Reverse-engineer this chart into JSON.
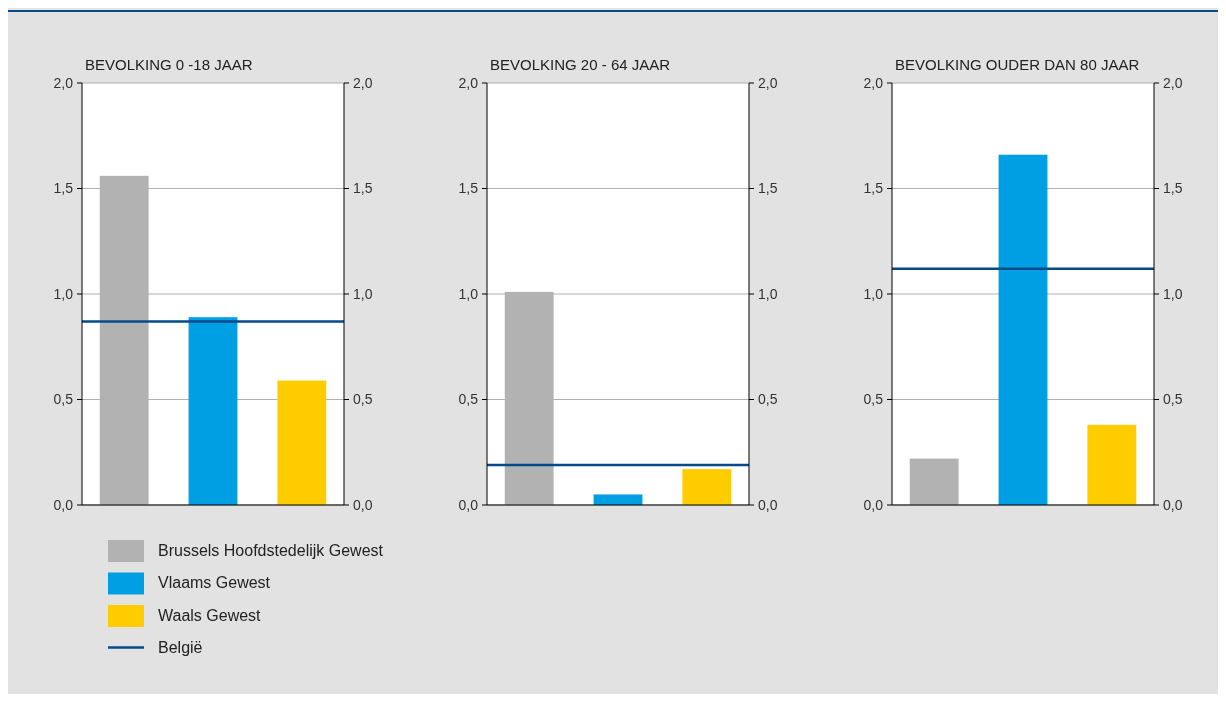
{
  "chart_data": [
    {
      "type": "bar",
      "title": "BEVOLKING 0 -18 JAAR",
      "categories": [
        null,
        null,
        null
      ],
      "series": [
        {
          "name": "Brussels Hoofdstedelijk Gewest",
          "color": "#b2b2b2",
          "values": [
            1.56,
            null,
            null
          ]
        },
        {
          "name": "Vlaams Gewest",
          "color": "#009fe3",
          "values": [
            null,
            0.89,
            null
          ]
        },
        {
          "name": "Waals Gewest",
          "color": "#ffcc00",
          "values": [
            null,
            null,
            0.59
          ]
        }
      ],
      "ref_lines": [
        {
          "axis": "y",
          "value": 0.87,
          "label": "België",
          "color": "#034a8b"
        }
      ],
      "ylim": [
        0,
        2
      ],
      "yticks": [
        {
          "value": 0,
          "label": "0,0"
        },
        {
          "value": 0.5,
          "label": "0,5"
        },
        {
          "value": 1,
          "label": "1,0"
        },
        {
          "value": 1.5,
          "label": "1,5"
        },
        {
          "value": 2,
          "label": "2,0"
        }
      ],
      "y2lim": [
        0,
        2
      ],
      "y2ticks": [
        {
          "value": 0,
          "label": "0,0"
        },
        {
          "value": 0.5,
          "label": "0,5"
        },
        {
          "value": 1,
          "label": "1,0"
        },
        {
          "value": 1.5,
          "label": "1,5"
        },
        {
          "value": 2,
          "label": "2,0"
        }
      ],
      "grid": "y",
      "legend": "bottom"
    },
    {
      "type": "bar",
      "title": "BEVOLKING 20 - 64 JAAR",
      "categories": [
        null,
        null,
        null
      ],
      "series": [
        {
          "color": "#b2b2b2",
          "values": [
            1.01,
            null,
            null
          ]
        },
        {
          "color": "#009fe3",
          "values": [
            null,
            0.05,
            null
          ]
        },
        {
          "color": "#ffcc00",
          "values": [
            null,
            null,
            0.17
          ]
        }
      ],
      "ref_lines": [
        {
          "axis": "y",
          "value": 0.19,
          "color": "#034a8b"
        }
      ],
      "ylim": [
        0,
        2
      ],
      "yticks": [
        {
          "value": 0,
          "label": "0,0"
        },
        {
          "value": 0.5,
          "label": "0,5"
        },
        {
          "value": 1,
          "label": "1,0"
        },
        {
          "value": 1.5,
          "label": "1,5"
        },
        {
          "value": 2,
          "label": "2,0"
        }
      ],
      "y2lim": [
        0,
        2
      ],
      "y2ticks": [
        {
          "value": 0,
          "label": "0,0"
        },
        {
          "value": 0.5,
          "label": "0,5"
        },
        {
          "value": 1,
          "label": "1,0"
        },
        {
          "value": 1.5,
          "label": "1,5"
        },
        {
          "value": 2,
          "label": "2,0"
        }
      ],
      "grid": "y"
    },
    {
      "type": "bar",
      "title": "BEVOLKING OUDER DAN 80 JAAR",
      "categories": [
        null,
        null,
        null
      ],
      "series": [
        {
          "color": "#b2b2b2",
          "values": [
            0.22,
            null,
            null
          ]
        },
        {
          "color": "#009fe3",
          "values": [
            null,
            1.66,
            null
          ]
        },
        {
          "color": "#ffcc00",
          "values": [
            null,
            null,
            0.38
          ]
        }
      ],
      "ref_lines": [
        {
          "axis": "y",
          "value": 1.12,
          "color": "#034a8b"
        }
      ],
      "ylim": [
        0,
        2
      ],
      "yticks": [
        {
          "value": 0,
          "label": "0,0"
        },
        {
          "value": 0.5,
          "label": "0,5"
        },
        {
          "value": 1,
          "label": "1,0"
        },
        {
          "value": 1.5,
          "label": "1,5"
        },
        {
          "value": 2,
          "label": "2,0"
        }
      ],
      "y2lim": [
        0,
        2
      ],
      "y2ticks": [
        {
          "value": 0,
          "label": "0,0"
        },
        {
          "value": 0.5,
          "label": "0,5"
        },
        {
          "value": 1,
          "label": "1,0"
        },
        {
          "value": 1.5,
          "label": "1,5"
        },
        {
          "value": 2,
          "label": "2,0"
        }
      ],
      "grid": "y"
    }
  ]
}
